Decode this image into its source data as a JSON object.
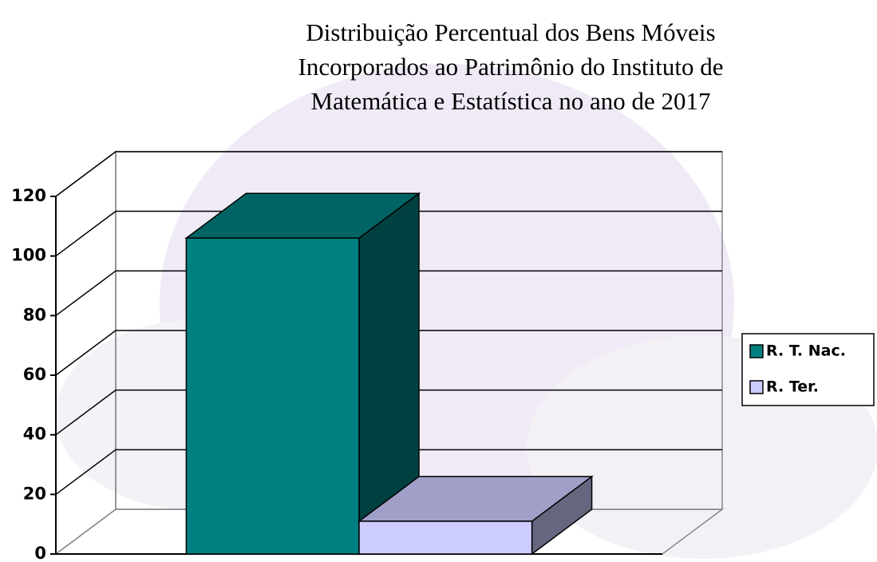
{
  "chart_data": {
    "type": "bar3d",
    "title": [
      "Distribuição Percentual dos Bens Móveis",
      "Incorporados ao Patrimônio do Instituto de",
      "Matemática e Estatística no ano de 2017"
    ],
    "categories": [
      null
    ],
    "series": [
      {
        "name": "R. T. Nac.",
        "color": "#008080",
        "values": [
          106
        ]
      },
      {
        "name": "R. Ter.",
        "color": "#ccccff",
        "values": [
          11
        ]
      }
    ],
    "ylim": [
      0,
      120
    ],
    "yticks": [
      0,
      20,
      40,
      60,
      80,
      100,
      120
    ],
    "grid": true,
    "legend": "right"
  }
}
